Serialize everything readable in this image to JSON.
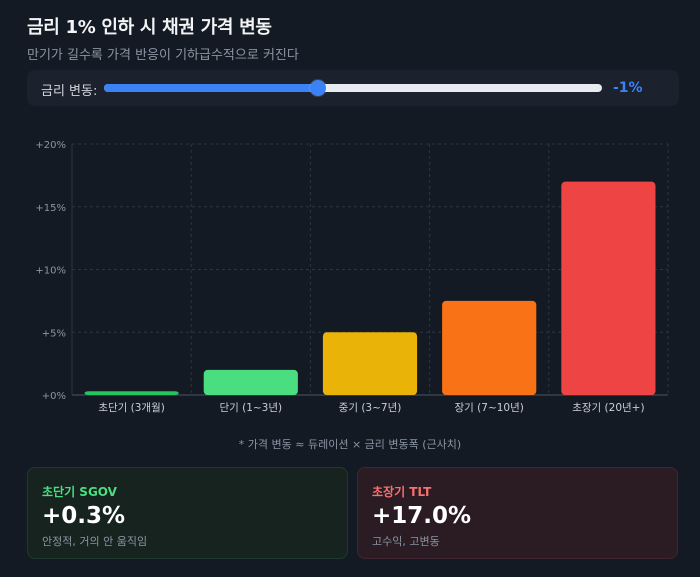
{
  "header": {
    "title": "금리 1% 인하 시 채권 가격 변동",
    "subtitle": "만기가 길수록 가격 반응이 기하급수적으로 커진다"
  },
  "slider": {
    "label": "금리 변동:",
    "value_text": "-1%",
    "fill_fraction": 0.43,
    "accent_color": "#3b82f6"
  },
  "chart_data": {
    "type": "bar",
    "categories": [
      "초단기 (3개월)",
      "단기 (1~3년)",
      "중기 (3~7년)",
      "장기 (7~10년)",
      "초장기 (20년+)"
    ],
    "values": [
      0.3,
      2.0,
      5.0,
      7.5,
      17.0
    ],
    "colors": [
      "#22c55e",
      "#4ade80",
      "#eab308",
      "#f97316",
      "#ef4444"
    ],
    "yticks": [
      "+0%",
      "+5%",
      "+10%",
      "+15%",
      "+20%"
    ],
    "ylim": [
      0,
      20
    ],
    "grid": true
  },
  "footnote": "* 가격 변동 ≈ 듀레이션 × 금리 변동폭 (근사치)",
  "cards": [
    {
      "title": "초단기 SGOV",
      "value": "+0.3%",
      "desc": "안정적, 거의 안 움직임"
    },
    {
      "title": "초장기 TLT",
      "value": "+17.0%",
      "desc": "고수익, 고변동"
    }
  ]
}
